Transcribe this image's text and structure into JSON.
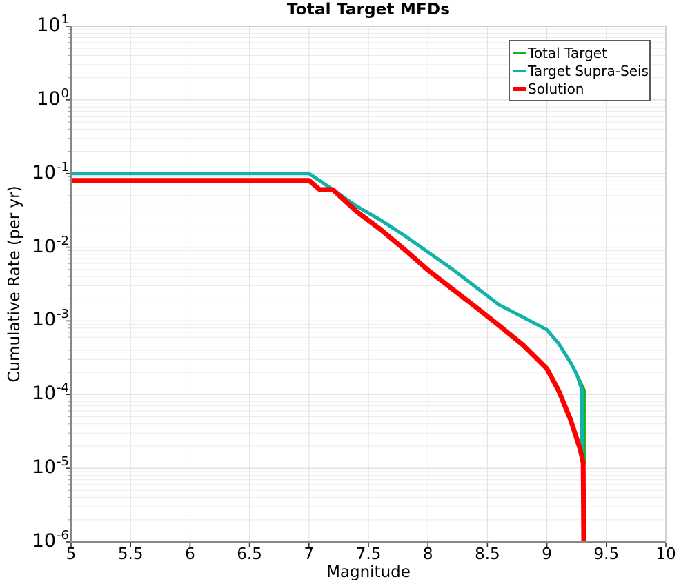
{
  "chart_data": {
    "type": "line",
    "title": "Total Target MFDs",
    "xlabel": "Magnitude",
    "ylabel": "Cumulative Rate (per yr)",
    "xlim": [
      5,
      10
    ],
    "ylim": [
      1e-06,
      10
    ],
    "y_scale": "log",
    "grid": {
      "show": true,
      "minor_log_lines": true
    },
    "x_ticks": {
      "values": [
        5,
        5.5,
        6,
        6.5,
        7,
        7.5,
        8,
        8.5,
        9,
        9.5,
        10
      ],
      "labels": [
        "5",
        "5.5",
        "6",
        "6.5",
        "7",
        "7.5",
        "8",
        "8.5",
        "9",
        "9.5",
        "10"
      ]
    },
    "y_ticks": {
      "base": "10",
      "exponents": [
        1,
        0,
        -1,
        -2,
        -3,
        -4,
        -5,
        -6
      ]
    },
    "legend": {
      "position": "top-right",
      "entries": [
        {
          "label": "Total Target",
          "color": "#16b216",
          "line_width": 4
        },
        {
          "label": "Target Supra-Seis",
          "color": "#12b2aa",
          "line_width": 4
        },
        {
          "label": "Solution",
          "color": "#fe0000",
          "line_width": 6
        }
      ]
    },
    "series": [
      {
        "name": "Total Target",
        "color": "#16b216",
        "width": 4,
        "points": [
          [
            5.0,
            0.1
          ],
          [
            7.0,
            0.1
          ],
          [
            7.2,
            0.0605
          ],
          [
            7.4,
            0.036
          ],
          [
            7.6,
            0.0235
          ],
          [
            7.8,
            0.0145
          ],
          [
            8.0,
            0.0086
          ],
          [
            8.2,
            0.0051
          ],
          [
            8.4,
            0.0029
          ],
          [
            8.6,
            0.00165
          ],
          [
            8.8,
            0.00112
          ],
          [
            9.0,
            0.00076
          ],
          [
            9.1,
            0.00049
          ],
          [
            9.2,
            0.00027
          ],
          [
            9.25,
            0.00019
          ],
          [
            9.315,
            0.000115
          ],
          [
            9.315,
            1.15e-05
          ]
        ]
      },
      {
        "name": "Target Supra-Seis",
        "color": "#12b2aa",
        "width": 5,
        "points": [
          [
            5.0,
            0.1
          ],
          [
            7.0,
            0.1
          ],
          [
            7.2,
            0.0605
          ],
          [
            7.4,
            0.036
          ],
          [
            7.6,
            0.0235
          ],
          [
            7.8,
            0.0145
          ],
          [
            8.0,
            0.0086
          ],
          [
            8.2,
            0.0051
          ],
          [
            8.4,
            0.0029
          ],
          [
            8.6,
            0.00165
          ],
          [
            8.8,
            0.00112
          ],
          [
            9.0,
            0.00076
          ],
          [
            9.1,
            0.00049
          ],
          [
            9.2,
            0.00027
          ],
          [
            9.25,
            0.00019
          ],
          [
            9.295,
            0.000115
          ],
          [
            9.295,
            1.18e-05
          ]
        ]
      },
      {
        "name": "Solution",
        "color": "#fe0000",
        "width": 7,
        "points": [
          [
            5.0,
            0.0807
          ],
          [
            7.0,
            0.0807
          ],
          [
            7.09,
            0.0605
          ],
          [
            7.2,
            0.0605
          ],
          [
            7.4,
            0.0305
          ],
          [
            7.6,
            0.0175
          ],
          [
            7.8,
            0.0094
          ],
          [
            8.0,
            0.0049
          ],
          [
            8.2,
            0.00275
          ],
          [
            8.4,
            0.00155
          ],
          [
            8.6,
            0.00086
          ],
          [
            8.8,
            0.00047
          ],
          [
            9.0,
            0.000225
          ],
          [
            9.1,
            0.000112
          ],
          [
            9.2,
            4.5e-05
          ],
          [
            9.28,
            1.8e-05
          ],
          [
            9.305,
            1.2e-05
          ],
          [
            9.31,
            1e-06
          ]
        ]
      }
    ],
    "style": {
      "frame_color_dark": "#878787",
      "frame_color_light": "#b3b3b3",
      "major_grid_color": "#dedede",
      "minor_grid_color": "#ebebeb",
      "vertical_grid_color": "#e4e4e4",
      "tick_color": "#333333",
      "minor_tick_color": "#999999"
    }
  }
}
